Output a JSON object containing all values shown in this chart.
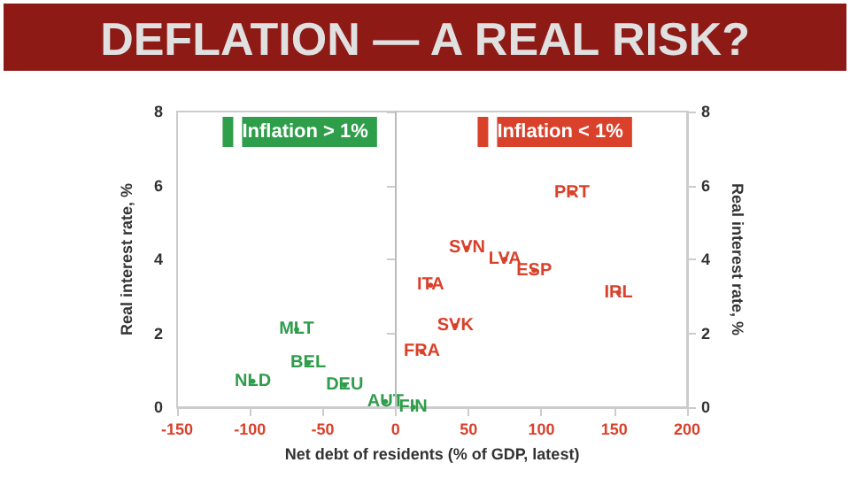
{
  "chart_data": {
    "type": "scatter",
    "title": "DEFLATION — A REAL RISK?",
    "xlabel": "Net debt of residents (% of GDP, latest)",
    "ylabel": "Real interest rate, %",
    "y2label": "Real interest rate, %",
    "series": [
      {
        "name": "Inflation > 1%",
        "color": "#2e9e4a",
        "x": [
          -68,
          -60,
          -98,
          -35,
          -7,
          12
        ],
        "values": [
          2.1,
          1.2,
          0.7,
          0.6,
          0.15,
          0
        ],
        "value_labels": [
          "MLT",
          "BEL",
          "NLD",
          "DEU",
          "AUT",
          "FIN"
        ]
      },
      {
        "name": "Inflation < 1%",
        "color": "#d9412b",
        "x": [
          121,
          49,
          75,
          95,
          24,
          153,
          41,
          18
        ],
        "values": [
          5.8,
          4.3,
          4.0,
          3.7,
          3.3,
          3.1,
          2.2,
          1.5
        ],
        "value_labels": [
          "PRT",
          "SVN",
          "LVA",
          "ESP",
          "ITA",
          "IRL",
          "SVK",
          "FRA"
        ]
      }
    ],
    "xlim": [
      -150,
      200
    ],
    "xticks": [
      -150,
      -100,
      -50,
      0,
      50,
      100,
      150,
      200
    ],
    "ylim": [
      0,
      8
    ],
    "yticks": [
      0,
      2,
      4,
      6,
      8
    ],
    "y2lim": [
      0,
      8
    ],
    "y2ticks": [
      0,
      2,
      4,
      6,
      8
    ],
    "ref_lines": [
      {
        "axis": "x",
        "value": 0,
        "color": "#bbbbbb"
      }
    ],
    "marker": "none",
    "grid": false,
    "legend": "top"
  }
}
